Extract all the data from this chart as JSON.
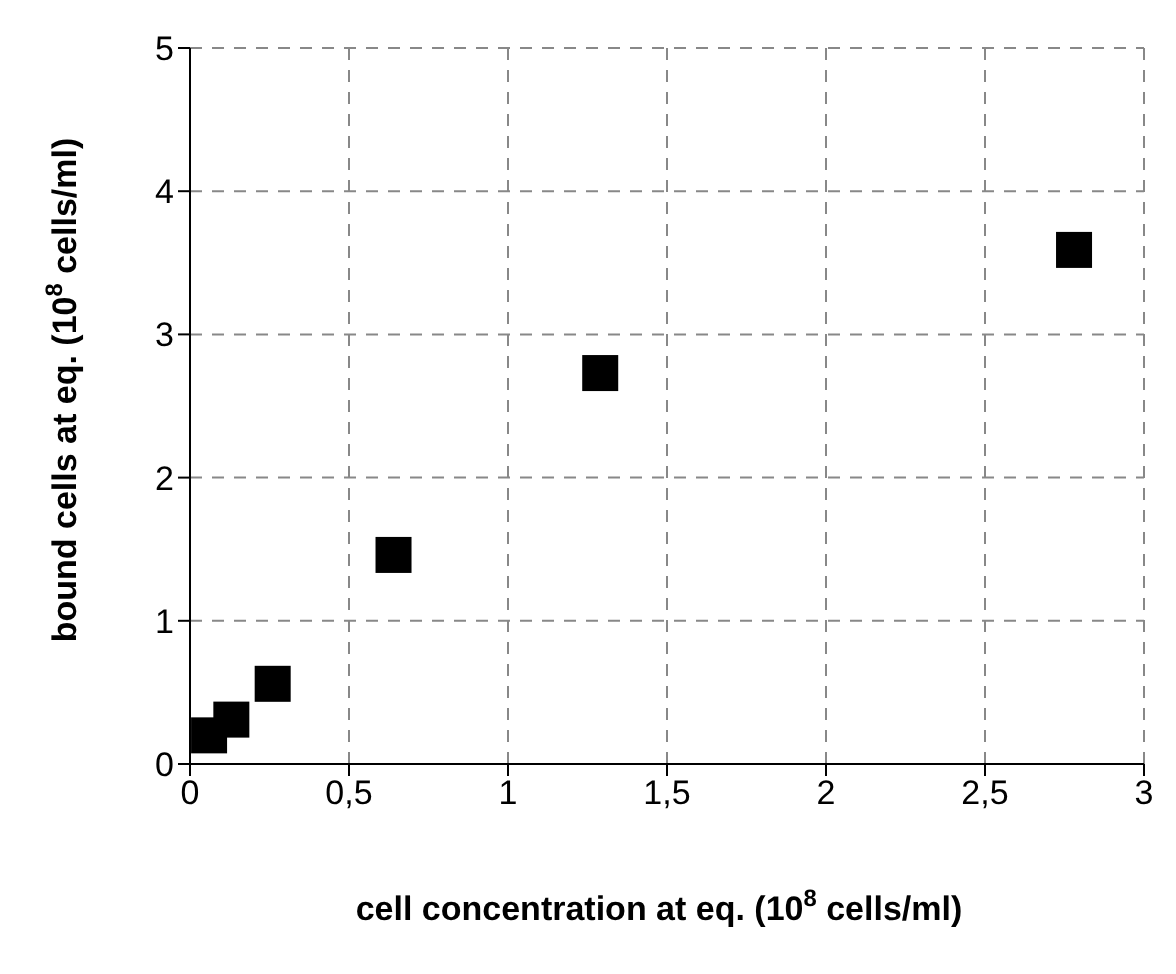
{
  "chart_data": {
    "type": "scatter",
    "xlabel": "cell concentration at eq. (10$^{8}$ cells/ml)",
    "ylabel": "bound cells at eq. (10$^{8}$ cells/ml)",
    "x": [
      0.06,
      0.13,
      0.26,
      0.64,
      1.29,
      2.78
    ],
    "series": [
      {
        "color": "#000000",
        "values": [
          0.2,
          0.31,
          0.56,
          1.46,
          2.73,
          3.59
        ]
      }
    ],
    "xlim": [
      0,
      3
    ],
    "xticks": [
      0,
      {
        "value": 0.5,
        "label": "0,5"
      },
      1,
      {
        "value": 1.5,
        "label": "1,5"
      },
      2,
      {
        "value": 2.5,
        "label": "2,5"
      },
      3
    ],
    "ylim": [
      0,
      5
    ],
    "yticks": [
      0,
      1,
      2,
      3,
      4,
      5
    ],
    "grid": true,
    "marker": "square"
  }
}
